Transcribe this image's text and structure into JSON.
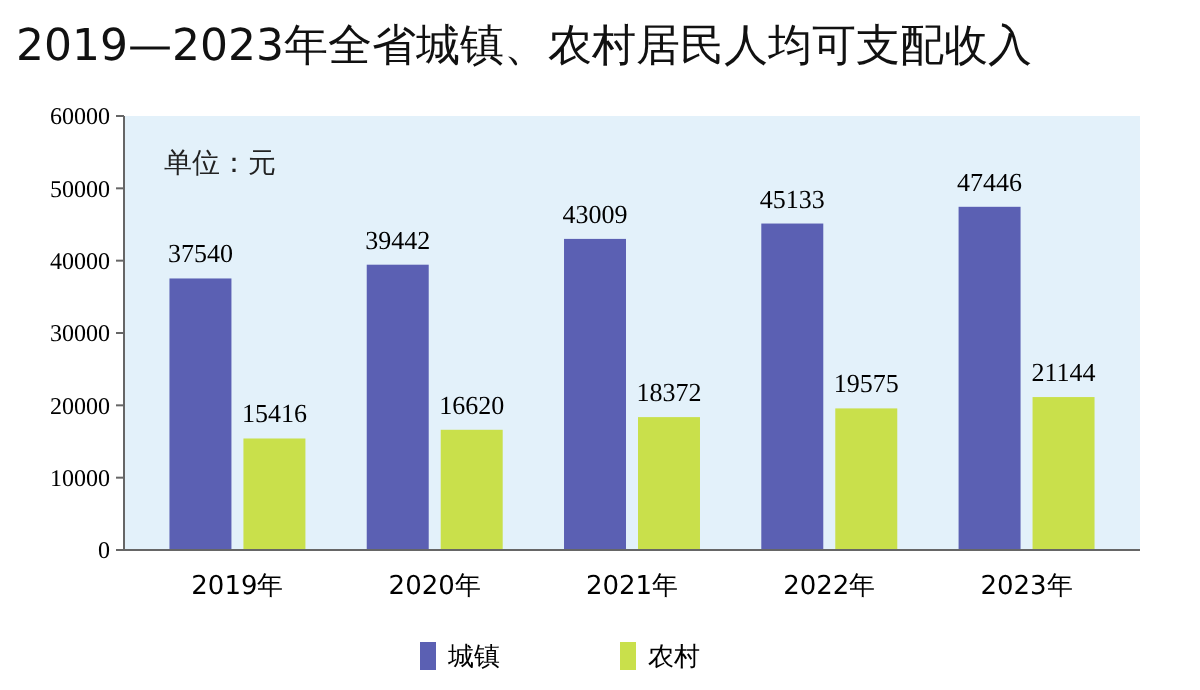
{
  "chart_data": {
    "type": "bar",
    "title": "2019—2023年全省城镇、农村居民人均可支配收入",
    "categories": [
      "2019年",
      "2020年",
      "2021年",
      "2022年",
      "2023年"
    ],
    "series": [
      {
        "name": "城镇",
        "color": "#5b60b3",
        "values": [
          37540,
          39442,
          43009,
          45133,
          47446
        ]
      },
      {
        "name": "农村",
        "color": "#c9e04b",
        "values": [
          15416,
          16620,
          18372,
          19575,
          21144
        ]
      }
    ],
    "ylim": [
      0,
      60000
    ],
    "yticks": [
      0,
      10000,
      20000,
      30000,
      40000,
      50000,
      60000
    ],
    "grid": false,
    "legend": "bottom",
    "data_labels": true,
    "annotations": [
      "单位：元"
    ]
  }
}
